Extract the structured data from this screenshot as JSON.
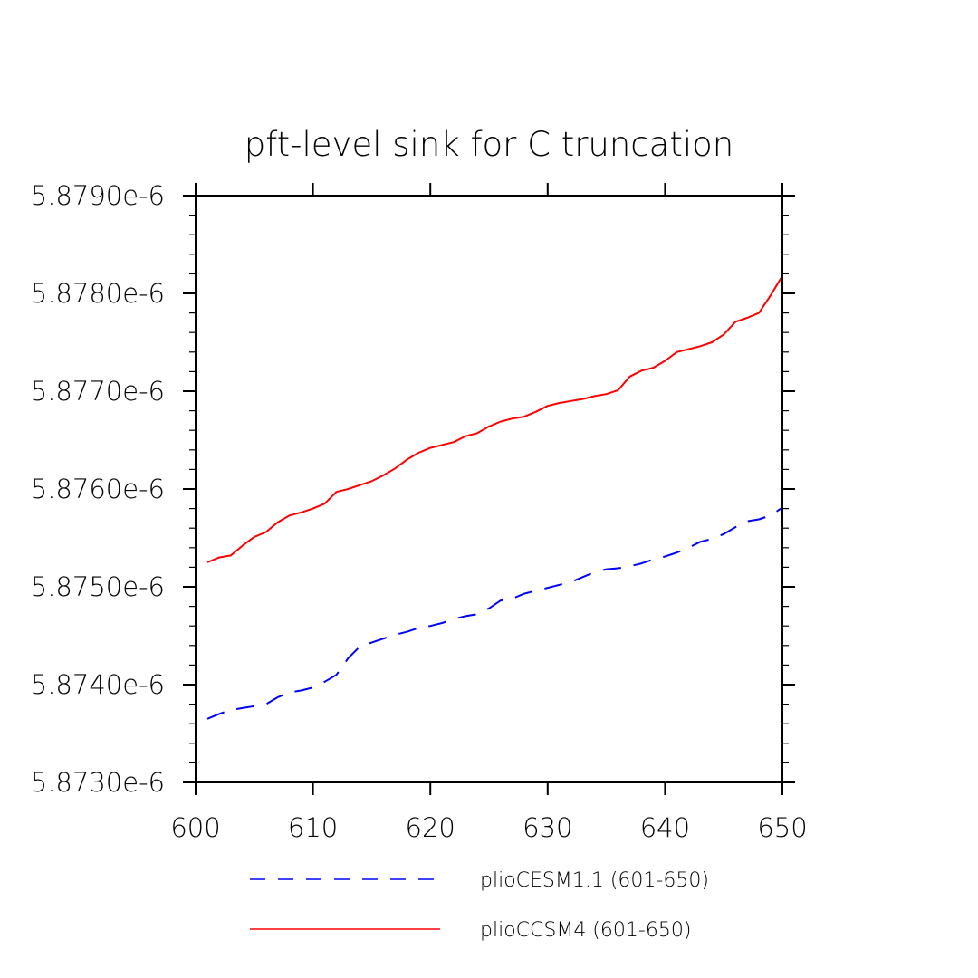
{
  "chart_data": {
    "type": "line",
    "title": "pft-level sink for C truncation",
    "xlabel": "",
    "ylabel": "",
    "xlim": [
      600,
      650
    ],
    "ylim": [
      5.873e-06,
      5.879e-06
    ],
    "x_ticks": [
      600,
      610,
      620,
      630,
      640,
      650
    ],
    "x_tick_labels": [
      "600",
      "610",
      "620",
      "630",
      "640",
      "650"
    ],
    "y_ticks": [
      5.873e-06,
      5.874e-06,
      5.875e-06,
      5.876e-06,
      5.877e-06,
      5.878e-06,
      5.879e-06
    ],
    "y_tick_labels": [
      "5.8730e-6",
      "5.8740e-6",
      "5.8750e-6",
      "5.8760e-6",
      "5.8770e-6",
      "5.8780e-6",
      "5.8790e-6"
    ],
    "grid": false,
    "legend_position": "bottom",
    "series": [
      {
        "name": "plioCESM1.1 (601-650)",
        "color": "#0000ff",
        "style": "dashed",
        "x": [
          601,
          602,
          603,
          604,
          605,
          606,
          607,
          608,
          609,
          610,
          611,
          612,
          613,
          614,
          615,
          616,
          617,
          618,
          619,
          620,
          621,
          622,
          623,
          624,
          625,
          626,
          627,
          628,
          629,
          630,
          631,
          632,
          633,
          634,
          635,
          636,
          637,
          638,
          639,
          640,
          641,
          642,
          643,
          644,
          645,
          646,
          647,
          648,
          649,
          650
        ],
        "y": [
          5.87365e-06,
          5.8737e-06,
          5.87374e-06,
          5.87376e-06,
          5.87378e-06,
          5.8738e-06,
          5.87387e-06,
          5.87392e-06,
          5.87394e-06,
          5.87397e-06,
          5.87403e-06,
          5.8741e-06,
          5.87427e-06,
          5.87439e-06,
          5.87443e-06,
          5.87447e-06,
          5.87451e-06,
          5.87454e-06,
          5.87458e-06,
          5.8746e-06,
          5.87463e-06,
          5.87467e-06,
          5.8747e-06,
          5.87472e-06,
          5.87478e-06,
          5.87486e-06,
          5.87488e-06,
          5.87493e-06,
          5.87496e-06,
          5.87499e-06,
          5.87502e-06,
          5.87505e-06,
          5.8751e-06,
          5.87515e-06,
          5.87518e-06,
          5.87519e-06,
          5.87521e-06,
          5.87524e-06,
          5.87528e-06,
          5.87531e-06,
          5.87535e-06,
          5.8754e-06,
          5.87546e-06,
          5.87549e-06,
          5.87554e-06,
          5.87561e-06,
          5.87567e-06,
          5.87569e-06,
          5.87573e-06,
          5.87581e-06
        ]
      },
      {
        "name": "plioCCSM4 (601-650)",
        "color": "#ff0000",
        "style": "solid",
        "x": [
          601,
          602,
          603,
          604,
          605,
          606,
          607,
          608,
          609,
          610,
          611,
          612,
          613,
          614,
          615,
          616,
          617,
          618,
          619,
          620,
          621,
          622,
          623,
          624,
          625,
          626,
          627,
          628,
          629,
          630,
          631,
          632,
          633,
          634,
          635,
          636,
          637,
          638,
          639,
          640,
          641,
          642,
          643,
          644,
          645,
          646,
          647,
          648,
          649,
          650
        ],
        "y": [
          5.87525e-06,
          5.8753e-06,
          5.87532e-06,
          5.87542e-06,
          5.87551e-06,
          5.87556e-06,
          5.87566e-06,
          5.87573e-06,
          5.87576e-06,
          5.8758e-06,
          5.87585e-06,
          5.87597e-06,
          5.876e-06,
          5.87604e-06,
          5.87608e-06,
          5.87614e-06,
          5.87621e-06,
          5.8763e-06,
          5.87637e-06,
          5.87642e-06,
          5.87645e-06,
          5.87648e-06,
          5.87654e-06,
          5.87657e-06,
          5.87664e-06,
          5.87669e-06,
          5.87672e-06,
          5.87674e-06,
          5.87679e-06,
          5.87685e-06,
          5.87688e-06,
          5.8769e-06,
          5.87692e-06,
          5.87695e-06,
          5.87697e-06,
          5.87701e-06,
          5.87715e-06,
          5.87721e-06,
          5.87724e-06,
          5.87731e-06,
          5.8774e-06,
          5.87743e-06,
          5.87746e-06,
          5.8775e-06,
          5.87758e-06,
          5.87771e-06,
          5.87775e-06,
          5.8778e-06,
          5.87798e-06,
          5.87818e-06
        ]
      }
    ]
  }
}
